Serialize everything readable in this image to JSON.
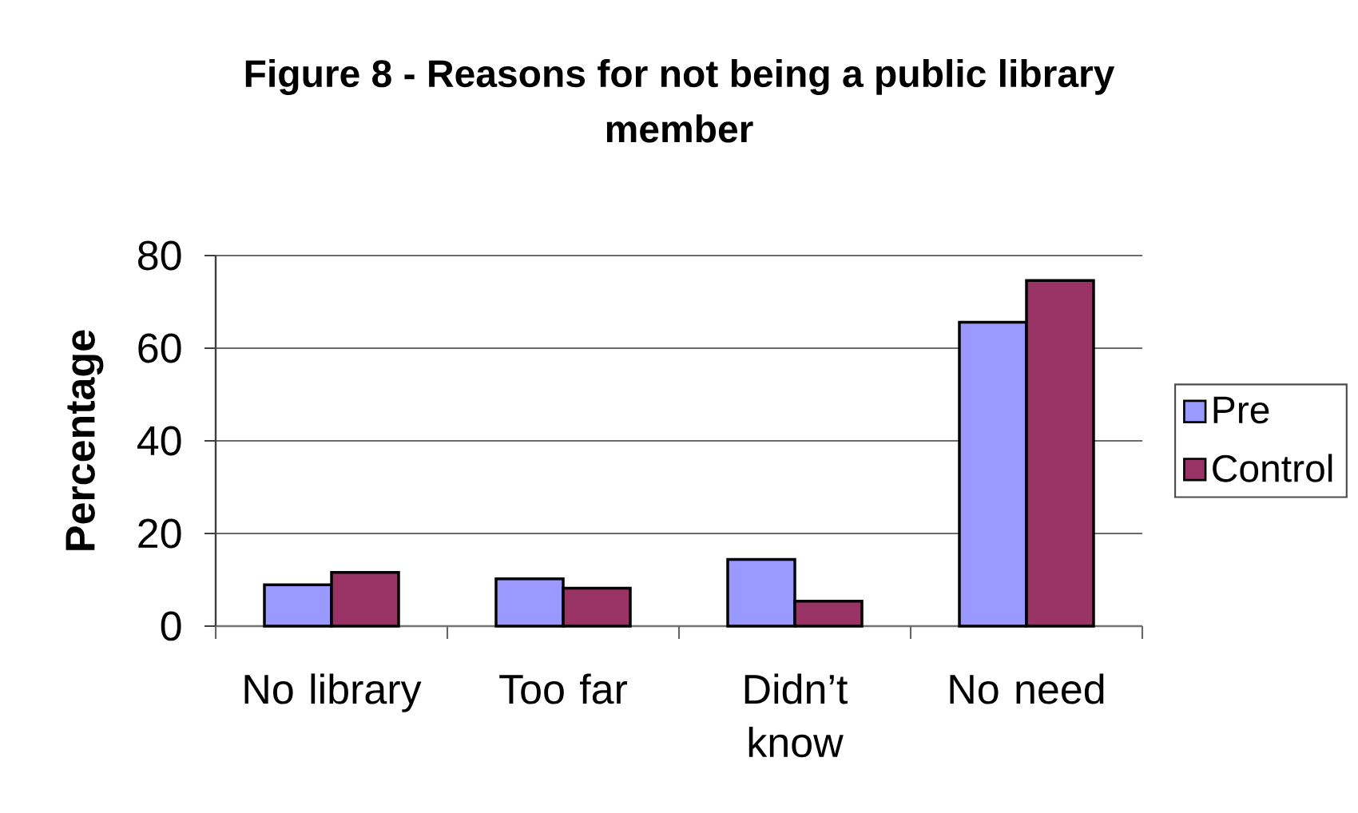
{
  "chart_data": {
    "type": "bar",
    "title": "Figure 8 - Reasons for not being a public library member",
    "ylabel": "Percentage",
    "categories": [
      "No library",
      "Too far",
      "Didn’t know",
      "No need"
    ],
    "series": [
      {
        "name": "Pre",
        "color": "#9999ff",
        "values": [
          8.9,
          10.2,
          14.4,
          65.6
        ]
      },
      {
        "name": "Control",
        "color": "#993366",
        "values": [
          11.6,
          8.2,
          5.4,
          74.6
        ]
      }
    ],
    "ylim": [
      0,
      80
    ],
    "yticks": [
      0,
      20,
      40,
      60,
      80
    ],
    "grid": "y",
    "legend": "right"
  }
}
